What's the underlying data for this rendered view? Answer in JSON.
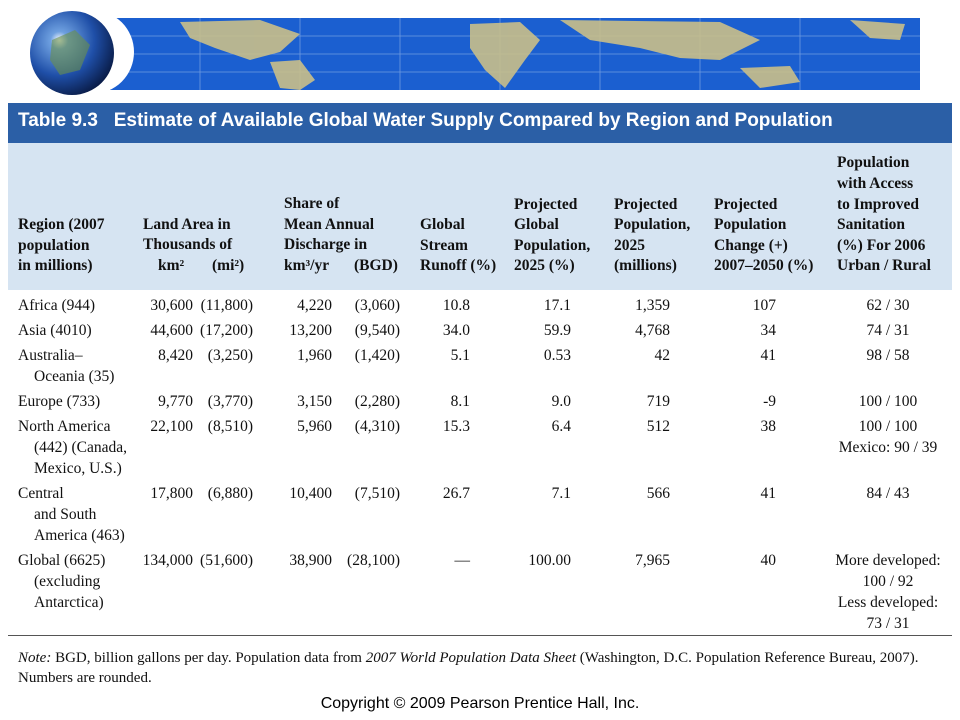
{
  "header": {
    "title": "Table 9.3   Estimate of Available Global Water Supply Compared by Region and Population"
  },
  "table": {
    "columns": [
      {
        "lines": [
          "Region (2007",
          "population",
          "in millions)"
        ]
      },
      {
        "lines": [
          "Land Area in",
          "Thousands of"
        ],
        "sub": [
          "km²",
          "(mi²)"
        ]
      },
      {
        "lines": [
          "Share of",
          "Mean Annual",
          "Discharge in"
        ],
        "sub": [
          "km³/yr",
          "(BGD)"
        ]
      },
      {
        "lines": [
          "Global",
          "Stream",
          "Runoff (%)"
        ]
      },
      {
        "lines": [
          "Projected",
          "Global",
          "Population,",
          "2025 (%)"
        ]
      },
      {
        "lines": [
          "Projected",
          "Population,",
          "2025",
          "(millions)"
        ]
      },
      {
        "lines": [
          "Projected",
          "Population",
          "Change (+)",
          "2007–2050 (%)"
        ]
      },
      {
        "lines": [
          "Population",
          "with Access",
          "to Improved",
          "Sanitation",
          "(%) For 2006",
          "Urban / Rural"
        ]
      }
    ],
    "rows": [
      {
        "region": [
          "Africa (944)"
        ],
        "km2": "30,600",
        "mi2": "(11,800)",
        "km3": "4,220",
        "bgd": "(3,060)",
        "runoff": "10.8",
        "global_pop": "17.1",
        "pop_2025": "1,359",
        "change": "107",
        "sanitation": [
          "62 / 30"
        ]
      },
      {
        "region": [
          "Asia (4010)"
        ],
        "km2": "44,600",
        "mi2": "(17,200)",
        "km3": "13,200",
        "bgd": "(9,540)",
        "runoff": "34.0",
        "global_pop": "59.9",
        "pop_2025": "4,768",
        "change": "34",
        "sanitation": [
          "74 / 31"
        ]
      },
      {
        "region": [
          "Australia–",
          "Oceania (35)"
        ],
        "km2": "8,420",
        "mi2": "(3,250)",
        "km3": "1,960",
        "bgd": "(1,420)",
        "runoff": "5.1",
        "global_pop": "0.53",
        "pop_2025": "42",
        "change": "41",
        "sanitation": [
          "98 / 58"
        ]
      },
      {
        "region": [
          "Europe (733)"
        ],
        "km2": "9,770",
        "mi2": "(3,770)",
        "km3": "3,150",
        "bgd": "(2,280)",
        "runoff": "8.1",
        "global_pop": "9.0",
        "pop_2025": "719",
        "change": "-9",
        "sanitation": [
          "100 / 100"
        ]
      },
      {
        "region": [
          "North America",
          "(442) (Canada,",
          "Mexico, U.S.)"
        ],
        "km2": "22,100",
        "mi2": "(8,510)",
        "km3": "5,960",
        "bgd": "(4,310)",
        "runoff": "15.3",
        "global_pop": "6.4",
        "pop_2025": "512",
        "change": "38",
        "sanitation": [
          "100 / 100",
          "Mexico: 90 / 39"
        ]
      },
      {
        "region": [
          "Central",
          "and South",
          "America (463)"
        ],
        "km2": "17,800",
        "mi2": "(6,880)",
        "km3": "10,400",
        "bgd": "(7,510)",
        "runoff": "26.7",
        "global_pop": "7.1",
        "pop_2025": "566",
        "change": "41",
        "sanitation": [
          "84 / 43"
        ]
      },
      {
        "region": [
          "Global (6625)",
          "(excluding",
          "Antarctica)"
        ],
        "km2": "134,000",
        "mi2": "(51,600)",
        "km3": "38,900",
        "bgd": "(28,100)",
        "runoff": "—",
        "global_pop": "100.00",
        "pop_2025": "7,965",
        "change": "40",
        "sanitation": [
          "More developed:",
          "100 / 92",
          "Less developed:",
          "73 / 31"
        ]
      }
    ]
  },
  "note": [
    "Note:",
    " BGD, billion gallons per day. Population data from ",
    "2007 World Population Data Sheet",
    " (Washington, D.C. Population Reference Bureau, 2007). Numbers are rounded."
  ],
  "copyright": "Copyright © 2009 Pearson Prentice Hall, Inc."
}
